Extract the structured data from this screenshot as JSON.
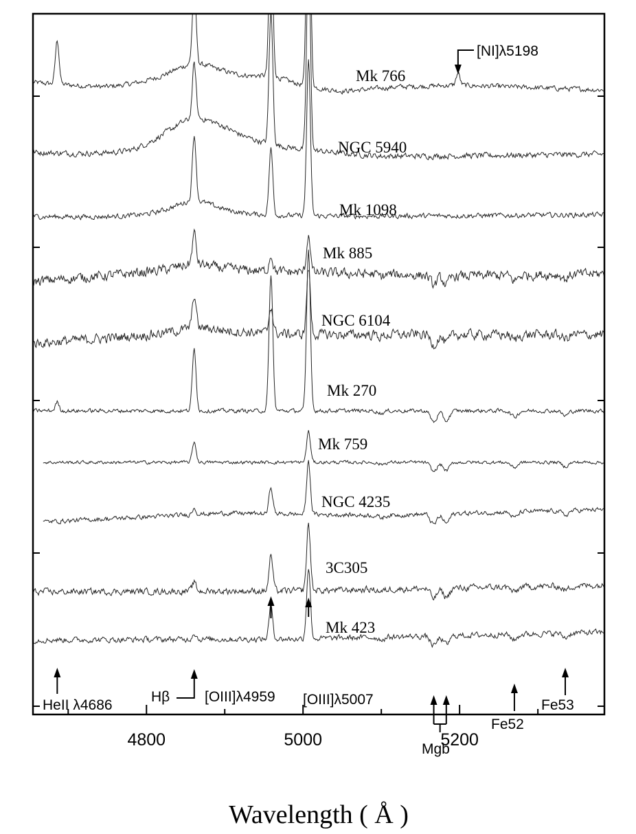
{
  "chart_data": {
    "type": "line",
    "title": "",
    "xlabel": "Wavelength ( Å )",
    "ylabel": "",
    "xlim": [
      4655,
      5385
    ],
    "x_ticks": [
      4800,
      5000,
      5200
    ],
    "grid": false,
    "series": [
      {
        "name": "Mk 766",
        "lines": [
          [
            4686,
            4.0
          ],
          [
            4861,
            7.0
          ],
          [
            4959,
            14.0
          ],
          [
            5007,
            24.0
          ],
          [
            5198,
            1.1
          ]
        ],
        "broad": [
          [
            4861,
            2.0,
            45
          ],
          [
            4959,
            0.8,
            35
          ]
        ],
        "cont": [
          [
            4655,
            0.4
          ],
          [
            4750,
            -0.2
          ],
          [
            4900,
            0.2
          ],
          [
            5050,
            -0.5
          ],
          [
            5120,
            0.0
          ],
          [
            5200,
            0.2
          ],
          [
            5385,
            -0.2
          ]
        ],
        "noise": 0.35
      },
      {
        "name": "NGC 5940",
        "lines": [
          [
            4861,
            5.0
          ],
          [
            4959,
            12.0
          ],
          [
            5007,
            18.0
          ]
        ],
        "broad": [
          [
            4861,
            3.2,
            55
          ]
        ],
        "cont": [
          [
            4655,
            0.0
          ],
          [
            4780,
            -0.6
          ],
          [
            4900,
            0.4
          ],
          [
            5100,
            -0.3
          ],
          [
            5385,
            0.0
          ]
        ],
        "noise": 0.4
      },
      {
        "name": "Mk 1098",
        "lines": [
          [
            4861,
            6.0
          ],
          [
            4959,
            6.0
          ],
          [
            5007,
            14.0
          ]
        ],
        "broad": [
          [
            4861,
            1.6,
            40
          ]
        ],
        "cont": [
          [
            4655,
            0.0
          ],
          [
            4800,
            -0.2
          ],
          [
            5000,
            0.0
          ],
          [
            5385,
            0.2
          ]
        ],
        "noise": 0.35
      },
      {
        "name": "Mk 885",
        "lines": [
          [
            4861,
            2.8
          ],
          [
            4959,
            1.5
          ],
          [
            5007,
            3.5
          ]
        ],
        "broad": [
          [
            4861,
            0.5,
            30
          ]
        ],
        "cont": [
          [
            4655,
            -0.3
          ],
          [
            4860,
            0.8
          ],
          [
            5000,
            0.5
          ],
          [
            5200,
            0.2
          ],
          [
            5385,
            0.4
          ]
        ],
        "noise": 0.7
      },
      {
        "name": "NGC 6104",
        "lines": [
          [
            4861,
            3.0
          ],
          [
            4959,
            2.5
          ],
          [
            5007,
            6.0
          ]
        ],
        "broad": [
          [
            4861,
            0.4,
            30
          ]
        ],
        "cont": [
          [
            4655,
            -0.5
          ],
          [
            4880,
            0.6
          ],
          [
            5000,
            0.3
          ],
          [
            5385,
            0.3
          ]
        ],
        "noise": 0.7
      },
      {
        "name": "Mk 270",
        "lines": [
          [
            4686,
            0.7
          ],
          [
            4861,
            5.0
          ],
          [
            4959,
            11.0
          ],
          [
            5007,
            13.0
          ]
        ],
        "broad": [],
        "cont": [
          [
            4655,
            0.0
          ],
          [
            5385,
            0.0
          ]
        ],
        "noise": 0.25
      },
      {
        "name": "Mk 759",
        "lines": [
          [
            4861,
            2.0
          ],
          [
            5007,
            3.0
          ]
        ],
        "broad": [],
        "cont": [
          [
            4655,
            0.0
          ],
          [
            5385,
            0.0
          ]
        ],
        "noise": 0.25
      },
      {
        "name": "NGC 4235",
        "lines": [
          [
            4861,
            0.6
          ],
          [
            4959,
            2.3
          ],
          [
            5007,
            4.5
          ]
        ],
        "broad": [],
        "cont": [
          [
            4655,
            -0.5
          ],
          [
            4900,
            0.3
          ],
          [
            5100,
            0.1
          ],
          [
            5385,
            0.6
          ]
        ],
        "noise": 0.3
      },
      {
        "name": "3C305",
        "lines": [
          [
            4861,
            0.8
          ],
          [
            4959,
            3.2
          ],
          [
            5007,
            6.0
          ]
        ],
        "broad": [],
        "cont": [
          [
            4655,
            -0.1
          ],
          [
            5000,
            0.0
          ],
          [
            5385,
            0.5
          ]
        ],
        "noise": 0.45
      },
      {
        "name": "Mk 423",
        "lines": [
          [
            4861,
            0.6
          ],
          [
            4959,
            3.0
          ],
          [
            5007,
            6.5
          ]
        ],
        "broad": [],
        "cont": [
          [
            4655,
            -0.1
          ],
          [
            5000,
            0.0
          ],
          [
            5385,
            0.6
          ]
        ],
        "noise": 0.4
      }
    ],
    "absorption": [
      [
        5167,
        0.9
      ],
      [
        5183,
        0.8
      ],
      [
        5270,
        0.5
      ],
      [
        5335,
        0.4
      ],
      [
        5100,
        0.2
      ]
    ],
    "line_markers": [
      {
        "label": "HeII λ4686",
        "wavelength": 4686
      },
      {
        "label": "Hβ",
        "wavelength": 4861
      },
      {
        "label": "[OIII]λ4959",
        "wavelength": 4959
      },
      {
        "label": "[OIII]λ5007",
        "wavelength": 5007
      },
      {
        "label": "Mgb",
        "wavelength": [
          5167,
          5183
        ]
      },
      {
        "label": "Fe52",
        "wavelength": 5270
      },
      {
        "label": "Fe53",
        "wavelength": 5335
      },
      {
        "label": "[NI]λ5198",
        "wavelength": 5198
      }
    ]
  }
}
